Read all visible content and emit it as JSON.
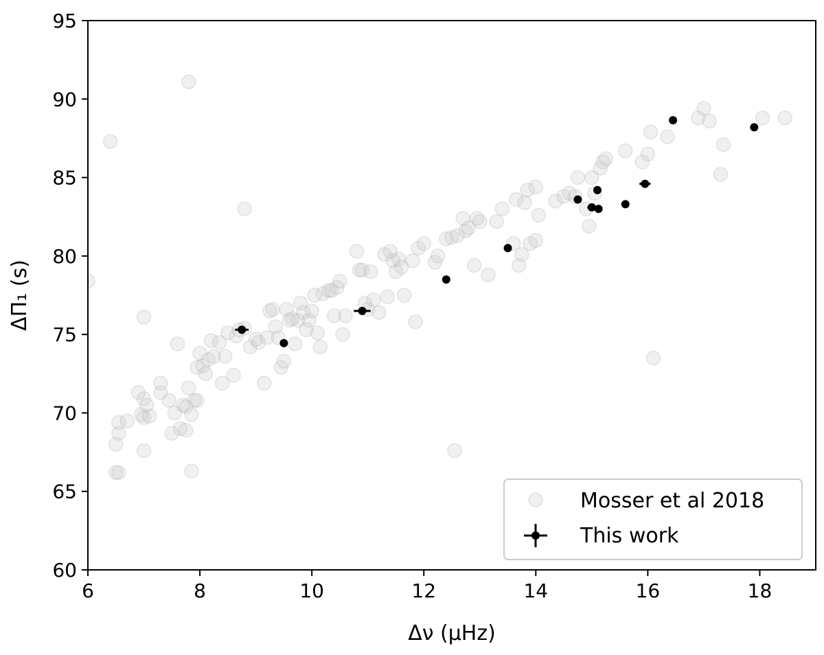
{
  "chart_data": {
    "type": "scatter",
    "xlabel": "Δν (μHz)",
    "ylabel": "ΔΠ₁ (s)",
    "xlim": [
      6,
      19
    ],
    "ylim": [
      60,
      95
    ],
    "x_ticks": [
      6,
      8,
      10,
      12,
      14,
      16,
      18
    ],
    "y_ticks": [
      60,
      65,
      70,
      75,
      80,
      85,
      90,
      95
    ],
    "x_tick_labels": [
      "6",
      "8",
      "10",
      "12",
      "14",
      "16",
      "18"
    ],
    "y_tick_labels": [
      "60",
      "65",
      "70",
      "75",
      "80",
      "85",
      "90",
      "95"
    ],
    "grid": false,
    "legend_position": "lower-right",
    "series": [
      {
        "name": "Mosser et al 2018",
        "color": "#c8c8c8",
        "points": [
          [
            6.0,
            78.4
          ],
          [
            6.4,
            87.3
          ],
          [
            6.5,
            66.2
          ],
          [
            6.55,
            66.2
          ],
          [
            6.5,
            68.0
          ],
          [
            6.55,
            68.7
          ],
          [
            6.55,
            69.4
          ],
          [
            6.7,
            69.5
          ],
          [
            6.9,
            71.3
          ],
          [
            6.95,
            69.9
          ],
          [
            7.0,
            69.7
          ],
          [
            7.0,
            70.9
          ],
          [
            7.05,
            70.5
          ],
          [
            7.0,
            76.1
          ],
          [
            7.0,
            67.6
          ],
          [
            7.1,
            69.8
          ],
          [
            7.3,
            71.3
          ],
          [
            7.3,
            71.9
          ],
          [
            7.45,
            70.8
          ],
          [
            7.5,
            68.7
          ],
          [
            7.55,
            70.0
          ],
          [
            7.6,
            74.4
          ],
          [
            7.65,
            69.0
          ],
          [
            7.7,
            70.5
          ],
          [
            7.75,
            70.4
          ],
          [
            7.75,
            68.9
          ],
          [
            7.8,
            71.6
          ],
          [
            7.8,
            91.1
          ],
          [
            7.85,
            69.9
          ],
          [
            7.9,
            70.8
          ],
          [
            7.95,
            70.8
          ],
          [
            7.85,
            66.3
          ],
          [
            7.95,
            72.9
          ],
          [
            8.0,
            73.8
          ],
          [
            8.05,
            73.0
          ],
          [
            8.1,
            72.5
          ],
          [
            8.15,
            73.4
          ],
          [
            8.2,
            74.6
          ],
          [
            8.25,
            73.6
          ],
          [
            8.35,
            74.5
          ],
          [
            8.4,
            71.9
          ],
          [
            8.45,
            73.6
          ],
          [
            8.5,
            75.1
          ],
          [
            8.6,
            72.4
          ],
          [
            8.65,
            74.9
          ],
          [
            8.7,
            75.3
          ],
          [
            8.8,
            83.0
          ],
          [
            8.8,
            75.4
          ],
          [
            8.9,
            74.2
          ],
          [
            9.0,
            74.7
          ],
          [
            9.05,
            74.5
          ],
          [
            9.15,
            71.9
          ],
          [
            9.2,
            74.8
          ],
          [
            9.25,
            76.5
          ],
          [
            9.3,
            76.6
          ],
          [
            9.35,
            75.5
          ],
          [
            9.4,
            74.8
          ],
          [
            9.45,
            72.9
          ],
          [
            9.5,
            73.3
          ],
          [
            9.55,
            76.6
          ],
          [
            9.6,
            75.9
          ],
          [
            9.65,
            76.0
          ],
          [
            9.7,
            74.4
          ],
          [
            9.75,
            75.9
          ],
          [
            9.8,
            77.0
          ],
          [
            9.85,
            76.4
          ],
          [
            9.9,
            75.3
          ],
          [
            9.95,
            75.9
          ],
          [
            10.0,
            76.5
          ],
          [
            10.05,
            77.5
          ],
          [
            10.1,
            75.1
          ],
          [
            10.15,
            74.2
          ],
          [
            10.2,
            77.6
          ],
          [
            10.3,
            77.8
          ],
          [
            10.35,
            77.8
          ],
          [
            10.4,
            76.2
          ],
          [
            10.45,
            78.0
          ],
          [
            10.5,
            78.4
          ],
          [
            10.55,
            75.0
          ],
          [
            10.6,
            76.2
          ],
          [
            10.8,
            80.3
          ],
          [
            10.85,
            79.1
          ],
          [
            10.9,
            79.1
          ],
          [
            10.95,
            77.0
          ],
          [
            11.0,
            76.6
          ],
          [
            11.05,
            79.0
          ],
          [
            11.1,
            77.2
          ],
          [
            11.2,
            76.4
          ],
          [
            11.3,
            80.1
          ],
          [
            11.35,
            77.4
          ],
          [
            11.4,
            80.3
          ],
          [
            11.45,
            79.7
          ],
          [
            11.5,
            79.0
          ],
          [
            11.55,
            79.8
          ],
          [
            11.6,
            79.3
          ],
          [
            11.65,
            77.5
          ],
          [
            11.8,
            79.7
          ],
          [
            11.85,
            75.8
          ],
          [
            11.9,
            80.5
          ],
          [
            12.0,
            80.8
          ],
          [
            12.2,
            79.6
          ],
          [
            12.25,
            80.0
          ],
          [
            12.4,
            81.1
          ],
          [
            12.5,
            81.2
          ],
          [
            12.55,
            67.6
          ],
          [
            12.6,
            81.3
          ],
          [
            12.7,
            82.4
          ],
          [
            12.75,
            81.6
          ],
          [
            12.8,
            81.8
          ],
          [
            12.9,
            79.4
          ],
          [
            12.95,
            82.4
          ],
          [
            13.0,
            82.2
          ],
          [
            13.15,
            78.8
          ],
          [
            13.3,
            82.2
          ],
          [
            13.4,
            83.0
          ],
          [
            13.6,
            80.8
          ],
          [
            13.65,
            83.6
          ],
          [
            13.7,
            79.4
          ],
          [
            13.75,
            80.1
          ],
          [
            13.8,
            83.4
          ],
          [
            13.85,
            84.2
          ],
          [
            13.9,
            80.8
          ],
          [
            14.0,
            81.0
          ],
          [
            14.0,
            84.4
          ],
          [
            14.05,
            82.6
          ],
          [
            14.35,
            83.5
          ],
          [
            14.5,
            83.8
          ],
          [
            14.6,
            84.0
          ],
          [
            14.7,
            83.8
          ],
          [
            14.75,
            85.0
          ],
          [
            14.9,
            83.0
          ],
          [
            14.95,
            81.9
          ],
          [
            15.0,
            85.0
          ],
          [
            15.05,
            84.0
          ],
          [
            15.15,
            85.6
          ],
          [
            15.2,
            86.0
          ],
          [
            15.25,
            86.2
          ],
          [
            15.6,
            86.7
          ],
          [
            15.9,
            86.0
          ],
          [
            16.0,
            86.5
          ],
          [
            16.05,
            87.9
          ],
          [
            16.1,
            73.5
          ],
          [
            16.35,
            87.6
          ],
          [
            16.9,
            88.8
          ],
          [
            17.0,
            89.4
          ],
          [
            17.1,
            88.6
          ],
          [
            17.35,
            87.1
          ],
          [
            17.3,
            85.2
          ],
          [
            18.05,
            88.8
          ],
          [
            18.45,
            88.8
          ]
        ]
      },
      {
        "name": "This work",
        "color": "#000000",
        "points": [
          [
            8.75,
            75.3
          ],
          [
            9.5,
            74.45
          ],
          [
            10.9,
            76.5
          ],
          [
            12.4,
            78.5
          ],
          [
            13.5,
            80.5
          ],
          [
            14.75,
            83.6
          ],
          [
            15.0,
            83.1
          ],
          [
            15.1,
            84.2
          ],
          [
            15.12,
            83.0
          ],
          [
            15.6,
            83.3
          ],
          [
            15.95,
            84.6
          ],
          [
            16.45,
            88.65
          ],
          [
            17.9,
            88.2
          ]
        ],
        "x_err": [
          0.12,
          0.05,
          0.15,
          0.04,
          0.06,
          0.05,
          0.08,
          0.04,
          0.04,
          0.05,
          0.1,
          0.04,
          0.04
        ],
        "y_err": [
          0.25,
          0.15,
          0.15,
          0.15,
          0.15,
          0.15,
          0.15,
          0.15,
          0.15,
          0.15,
          0.2,
          0.15,
          0.15
        ]
      }
    ]
  }
}
